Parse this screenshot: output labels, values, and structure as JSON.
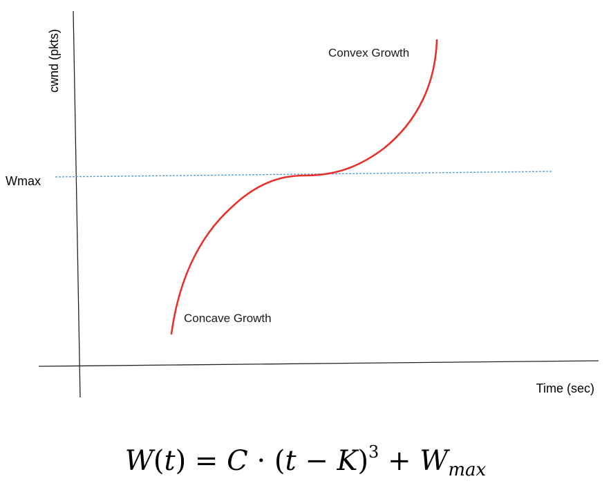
{
  "diagram": {
    "y_axis_label": "cwnd (pkts)",
    "x_axis_label": "Time (sec)",
    "reference_label": "Wmax",
    "upper_annotation": "Convex Growth",
    "lower_annotation": "Concave Growth",
    "curve_color": "#e8302a",
    "reference_line_color": "#5b9bd5",
    "axis_color": "#222222"
  },
  "formula": {
    "lhs_function": "W",
    "lhs_arg": "t",
    "equals": "=",
    "coef": "C",
    "dot": "·",
    "t_var": "t",
    "minus": "−",
    "k_var": "K",
    "exponent": "3",
    "plus": "+",
    "w_var": "W",
    "w_sub": "max"
  }
}
